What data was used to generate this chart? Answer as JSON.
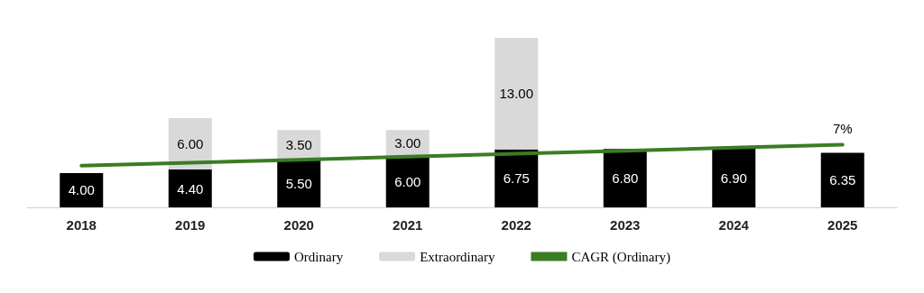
{
  "chart_data": {
    "type": "bar",
    "stacked": true,
    "categories": [
      "2018",
      "2019",
      "2020",
      "2021",
      "2022",
      "2023",
      "2024",
      "2025"
    ],
    "series": [
      {
        "name": "Ordinary",
        "color": "#000000",
        "values": [
          4.0,
          4.4,
          5.5,
          6.0,
          6.75,
          6.8,
          6.9,
          6.35
        ],
        "value_labels": [
          "4.00",
          "4.40",
          "5.50",
          "6.00",
          "6.75",
          "6.80",
          "6.90",
          "6.35"
        ]
      },
      {
        "name": "Extraordinary",
        "color": "#d9d9d9",
        "values": [
          null,
          6.0,
          3.5,
          3.0,
          13.0,
          null,
          null,
          null
        ],
        "value_labels": [
          null,
          "6.00",
          "3.50",
          "3.00",
          "13.00",
          null,
          null,
          null
        ]
      },
      {
        "name": "CAGR (Ordinary)",
        "type": "line",
        "color": "#3a7d22",
        "values": [
          4.85,
          5.2,
          5.55,
          5.9,
          6.25,
          6.6,
          6.95,
          7.3
        ]
      }
    ],
    "annotations": [
      {
        "text": "7%",
        "x": "2025",
        "y": 7.3
      }
    ],
    "legend": "bottom",
    "marker": "none"
  }
}
